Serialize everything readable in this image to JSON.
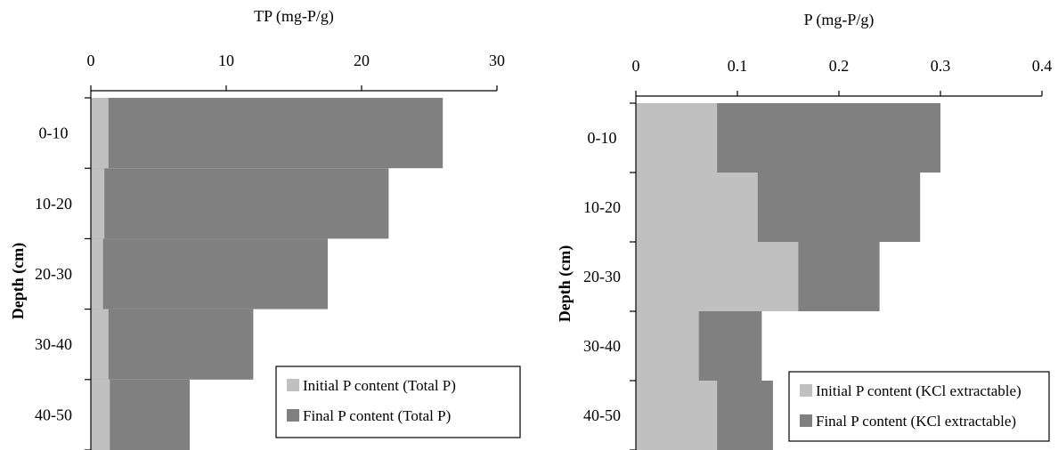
{
  "colors": {
    "initial": "#c0c0c0",
    "final": "#808080",
    "axis": "#000000"
  },
  "chart_data": [
    {
      "type": "bar",
      "orientation": "horizontal",
      "layout": "overlapping (final bar drawn behind initial bar)",
      "xlabel": "TP (mg-P/g)",
      "ylabel": "Depth (cm)",
      "xlim": [
        0,
        30
      ],
      "xticks": [
        "0",
        "10",
        "20",
        "30"
      ],
      "x_axis_position": "top",
      "categories": [
        "0-10",
        "10-20",
        "20-30",
        "30-40",
        "40-50"
      ],
      "series": [
        {
          "name": "Initial P content (Total P)",
          "color": "#c0c0c0",
          "values": [
            1.3,
            1.0,
            0.9,
            1.3,
            1.4
          ]
        },
        {
          "name": "Final P content (Total P)",
          "color": "#808080",
          "values": [
            26.0,
            22.0,
            17.5,
            12.0,
            7.3
          ]
        }
      ],
      "legend": "bottom-right"
    },
    {
      "type": "bar",
      "orientation": "horizontal",
      "layout": "overlapping (final bar drawn behind initial bar)",
      "xlabel": "P (mg-P/g)",
      "ylabel": "Depth (cm)",
      "xlim": [
        0,
        0.4
      ],
      "xticks": [
        "0",
        "0.1",
        "0.2",
        "0.3",
        "0.4"
      ],
      "x_axis_position": "top",
      "categories": [
        "0-10",
        "10-20",
        "20-30",
        "30-40",
        "40-50"
      ],
      "series": [
        {
          "name": "Initial P content (KCl extractable)",
          "color": "#c0c0c0",
          "values": [
            0.08,
            0.12,
            0.16,
            0.062,
            0.08
          ]
        },
        {
          "name": "Final P content (KCl extractable)",
          "color": "#808080",
          "values": [
            0.3,
            0.28,
            0.24,
            0.124,
            0.135
          ]
        }
      ],
      "legend": "bottom-right"
    }
  ]
}
